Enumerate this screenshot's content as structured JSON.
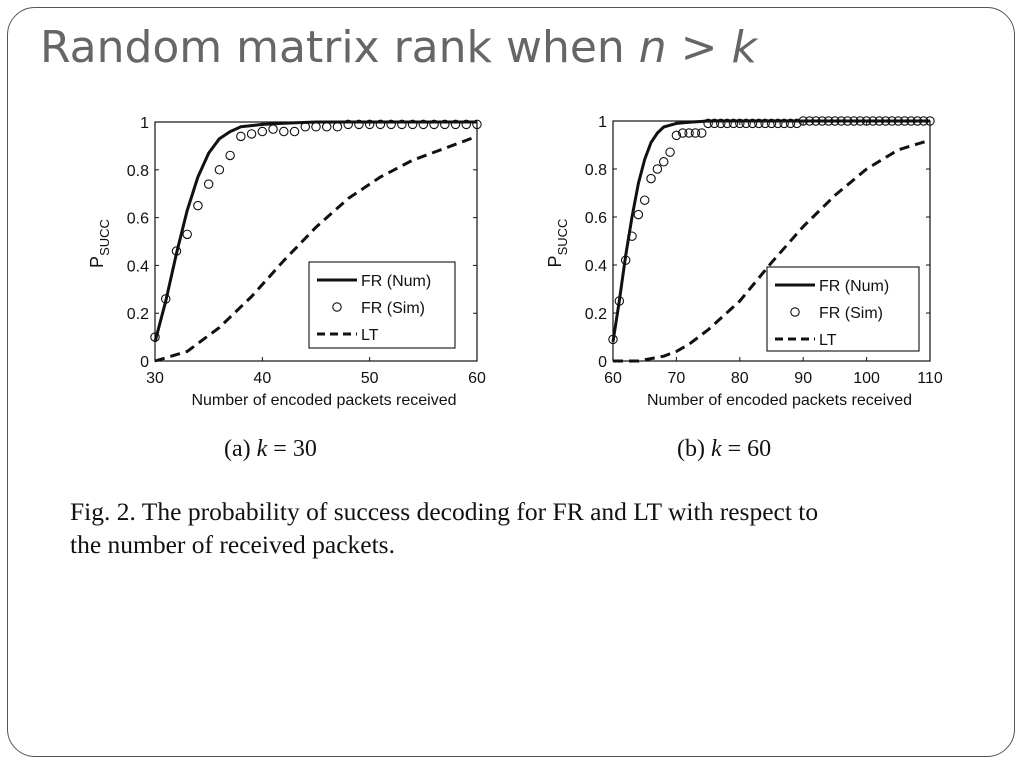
{
  "slide": {
    "title_prefix": "Random  matrix rank when ",
    "title_n": "n",
    "title_gt": " > ",
    "title_k": "k"
  },
  "figure": {
    "caption_line1": "Fig. 2.    The probability of success decoding for FR and LT with respect to",
    "caption_line2": "the number of received packets.",
    "subcaptions": [
      {
        "prefix": "(a) ",
        "var": "k",
        "rest": " = 30"
      },
      {
        "prefix": "(b) ",
        "var": "k",
        "rest": " = 60"
      }
    ]
  },
  "colors": {
    "ink": "#111111",
    "title": "#666666",
    "frame": "#555555"
  },
  "chart_data": [
    {
      "type": "line",
      "title": "",
      "xlabel": "Number of encoded packets received",
      "ylabel": "P",
      "ylabel_sub": "SUCC",
      "xlim": [
        30,
        60
      ],
      "ylim": [
        0,
        1
      ],
      "xticks": [
        30,
        40,
        50,
        60
      ],
      "yticks": [
        0,
        0.2,
        0.4,
        0.6,
        0.8,
        1
      ],
      "grid": false,
      "legend": "lower-right",
      "series": [
        {
          "name": "FR (Num)",
          "style": "solid",
          "x": [
            30,
            31,
            32,
            33,
            34,
            35,
            36,
            37,
            38,
            40,
            42,
            45,
            50,
            55,
            60
          ],
          "y": [
            0.08,
            0.25,
            0.45,
            0.63,
            0.77,
            0.87,
            0.93,
            0.96,
            0.98,
            0.99,
            0.995,
            1.0,
            1.0,
            1.0,
            1.0
          ]
        },
        {
          "name": "FR (Sim)",
          "style": "circle",
          "x": [
            30,
            31,
            32,
            33,
            34,
            35,
            36,
            37,
            38,
            39,
            40,
            41,
            42,
            43,
            44,
            45,
            46,
            47,
            48,
            49,
            50,
            51,
            52,
            53,
            54,
            55,
            56,
            57,
            58,
            59,
            60
          ],
          "y": [
            0.1,
            0.26,
            0.46,
            0.53,
            0.65,
            0.74,
            0.8,
            0.86,
            0.94,
            0.95,
            0.96,
            0.97,
            0.96,
            0.96,
            0.98,
            0.98,
            0.98,
            0.98,
            0.99,
            0.99,
            0.99,
            0.99,
            0.99,
            0.99,
            0.99,
            0.99,
            0.99,
            0.99,
            0.99,
            0.99,
            0.99
          ]
        },
        {
          "name": "LT",
          "style": "dashed",
          "x": [
            30,
            33,
            36,
            39,
            42,
            45,
            48,
            51,
            54,
            57,
            60
          ],
          "y": [
            0.0,
            0.04,
            0.14,
            0.27,
            0.42,
            0.56,
            0.68,
            0.77,
            0.84,
            0.89,
            0.94
          ]
        }
      ]
    },
    {
      "type": "line",
      "title": "",
      "xlabel": "Number of encoded packets received",
      "ylabel": "P",
      "ylabel_sub": "SUCC",
      "xlim": [
        60,
        110
      ],
      "ylim": [
        0,
        1
      ],
      "xticks": [
        60,
        70,
        80,
        90,
        100,
        110
      ],
      "yticks": [
        0,
        0.2,
        0.4,
        0.6,
        0.8,
        1
      ],
      "grid": false,
      "legend": "lower-right",
      "series": [
        {
          "name": "FR (Num)",
          "style": "solid",
          "x": [
            60,
            61,
            62,
            63,
            64,
            65,
            66,
            67,
            68,
            70,
            72,
            75,
            80,
            90,
            110
          ],
          "y": [
            0.08,
            0.25,
            0.44,
            0.6,
            0.74,
            0.84,
            0.91,
            0.95,
            0.975,
            0.99,
            0.995,
            1.0,
            1.0,
            1.0,
            1.0
          ]
        },
        {
          "name": "FR (Sim)",
          "style": "circle",
          "x": [
            60,
            61,
            62,
            63,
            64,
            65,
            66,
            67,
            68,
            69,
            70,
            71,
            72,
            73,
            74,
            75,
            76,
            77,
            78,
            79,
            80,
            81,
            82,
            83,
            84,
            85,
            86,
            87,
            88,
            89,
            90,
            91,
            92,
            93,
            94,
            95,
            96,
            97,
            98,
            99,
            100,
            101,
            102,
            103,
            104,
            105,
            106,
            107,
            108,
            109,
            110
          ],
          "y": [
            0.09,
            0.25,
            0.42,
            0.52,
            0.61,
            0.67,
            0.76,
            0.8,
            0.83,
            0.87,
            0.94,
            0.95,
            0.95,
            0.95,
            0.95,
            0.99,
            0.99,
            0.99,
            0.99,
            0.99,
            0.99,
            0.99,
            0.99,
            0.99,
            0.99,
            0.99,
            0.99,
            0.99,
            0.99,
            0.99,
            1.0,
            1.0,
            1.0,
            1.0,
            1.0,
            1.0,
            1.0,
            1.0,
            1.0,
            1.0,
            1.0,
            1.0,
            1.0,
            1.0,
            1.0,
            1.0,
            1.0,
            1.0,
            1.0,
            1.0,
            1.0
          ]
        },
        {
          "name": "LT",
          "style": "dashed",
          "x": [
            60,
            64,
            66,
            68,
            70,
            72,
            75,
            80,
            85,
            90,
            95,
            100,
            105,
            110
          ],
          "y": [
            0.0,
            0.0,
            0.01,
            0.02,
            0.04,
            0.07,
            0.13,
            0.25,
            0.41,
            0.56,
            0.69,
            0.8,
            0.88,
            0.92
          ]
        }
      ]
    }
  ]
}
